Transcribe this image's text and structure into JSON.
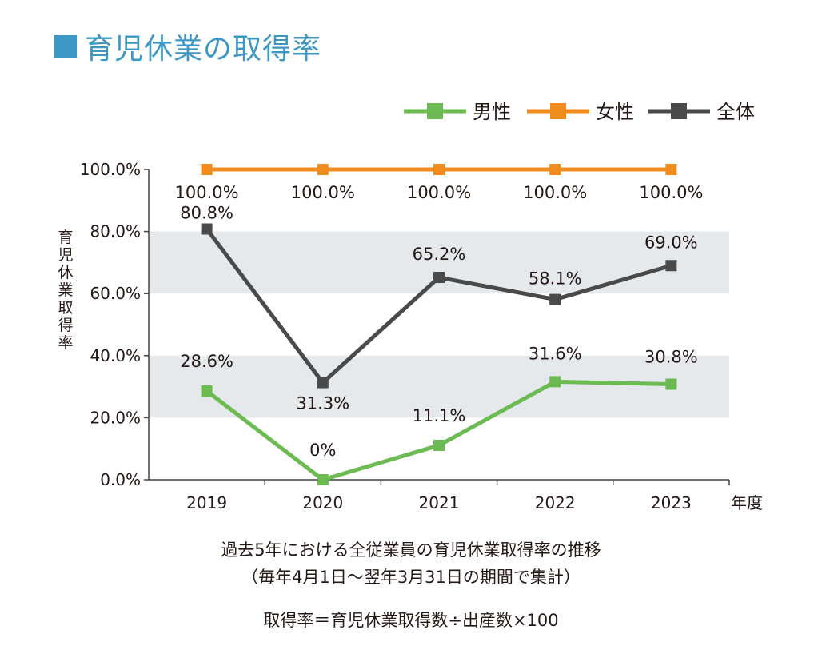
{
  "title": "育児休業の取得率",
  "colors": {
    "title": "#3d97c4",
    "male": "#6bbb52",
    "female": "#f08c1e",
    "total": "#4a4a4a",
    "band": "#e6e9ec",
    "axis": "#444444"
  },
  "chart_data": {
    "type": "line",
    "categories": [
      "2019",
      "2020",
      "2021",
      "2022",
      "2023"
    ],
    "xlabel": "年度",
    "ylabel": "育児休業取得率",
    "ylim": [
      0,
      100
    ],
    "yticks": [
      "0.0%",
      "20.0%",
      "40.0%",
      "60.0%",
      "80.0%",
      "100.0%"
    ],
    "grid": false,
    "shaded_bands": [
      [
        20,
        40
      ],
      [
        60,
        80
      ]
    ],
    "legend_position": "top-right",
    "series": [
      {
        "name": "男性",
        "color": "#6bbb52",
        "values": [
          28.6,
          0,
          11.1,
          31.6,
          30.8
        ],
        "labels": [
          "28.6%",
          "0%",
          "11.1%",
          "31.6%",
          "30.8%"
        ]
      },
      {
        "name": "女性",
        "color": "#f08c1e",
        "values": [
          100,
          100,
          100,
          100,
          100
        ],
        "labels": [
          "100.0%",
          "100.0%",
          "100.0%",
          "100.0%",
          "100.0%"
        ]
      },
      {
        "name": "全体",
        "color": "#4a4a4a",
        "values": [
          80.8,
          31.3,
          65.2,
          58.1,
          69.0
        ],
        "labels": [
          "80.8%",
          "31.3%",
          "65.2%",
          "58.1%",
          "69.0%"
        ]
      }
    ]
  },
  "notes": {
    "line1": "過去5年における全従業員の育児休業取得率の推移",
    "line2": "（毎年4月1日～翌年3月31日の期間で集計）",
    "line3": "取得率＝育児休業取得数÷出産数×100"
  }
}
